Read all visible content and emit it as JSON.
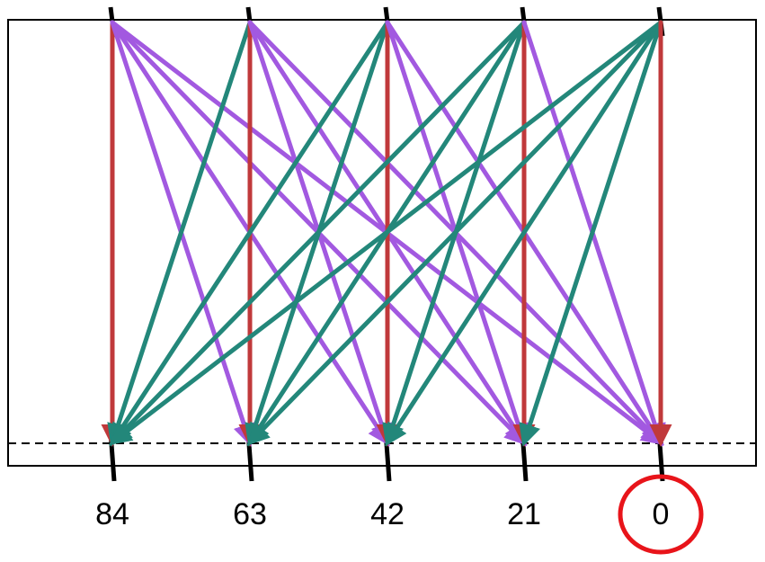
{
  "nodes": [
    {
      "label": "84"
    },
    {
      "label": "63"
    },
    {
      "label": "42"
    },
    {
      "label": "21"
    },
    {
      "label": "0",
      "highlighted": true
    }
  ],
  "colors": {
    "vertical_arrow": "#c0393b",
    "right_arrow": "#a259e0",
    "left_arrow": "#23877a",
    "axis": "#000000",
    "frame": "#000000",
    "baseline": "#000000",
    "highlight_ring": "#e8141a"
  },
  "arrow_groups": [
    {
      "name": "vertical",
      "description_from": "same",
      "color_key": "vertical_arrow"
    },
    {
      "name": "rightward",
      "color_key": "right_arrow"
    },
    {
      "name": "leftward",
      "color_key": "left_arrow"
    }
  ],
  "baseline_style": "dashed"
}
